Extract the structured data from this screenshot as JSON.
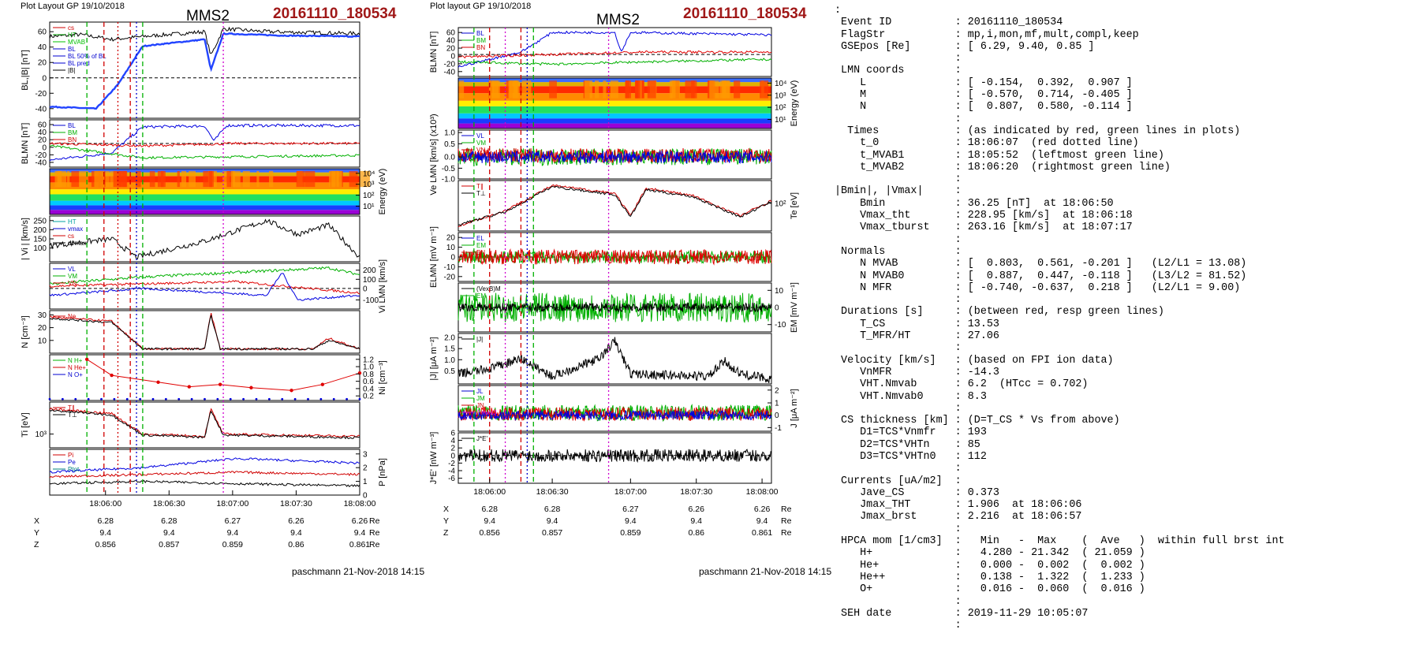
{
  "left": {
    "header": {
      "layout": "Plot Layout GP 19/10/2018",
      "spacecraft": "MMS2",
      "event": "20161110_180534"
    },
    "footer": "paschmann 21-Nov-2018 14:15",
    "time_ticks": [
      "18:06:00",
      "18:06:30",
      "18:07:00",
      "18:07:30",
      "18:08:00"
    ],
    "ephem": {
      "units": "Re",
      "rows": [
        {
          "label": "X",
          "values": [
            "6.28",
            "6.28",
            "6.27",
            "6.26",
            "6.26"
          ]
        },
        {
          "label": "Y",
          "values": [
            "9.4",
            "9.4",
            "9.4",
            "9.4",
            "9.4"
          ]
        },
        {
          "label": "Z",
          "values": [
            "0.856",
            "0.857",
            "0.859",
            "0.86",
            "0.861"
          ]
        }
      ]
    },
    "panels": [
      {
        "ylabel": "BL,|B| [nT]",
        "yticks": [
          "60",
          "40",
          "20",
          "0",
          "-20",
          "-40"
        ],
        "legend": [
          "cs",
          "HT",
          "MVAB",
          "BL",
          "BL 50% of BL",
          "BL pred",
          "|B|"
        ]
      },
      {
        "ylabel": "BLMN [nT]",
        "yticks": [
          "60",
          "40",
          "20",
          "0",
          "-20",
          "-40"
        ],
        "legend": [
          "BL",
          "BM",
          "BN"
        ]
      },
      {
        "ylabel": "Energy (eV)",
        "yticks": [
          "10⁴",
          "10³",
          "10²",
          "10¹"
        ],
        "legend": []
      },
      {
        "ylabel": "| Vi | [km/s]",
        "yticks": [
          "250",
          "200",
          "150",
          "100"
        ],
        "legend": [
          "HT",
          "vmax",
          "cs",
          "dvmax"
        ]
      },
      {
        "ylabel": "Vi LMN [km/s]",
        "yticks": [
          "200",
          "100",
          "0",
          "-100"
        ],
        "legend": [
          "VL",
          "VM",
          "VN"
        ]
      },
      {
        "ylabel": "N [cm⁻³]",
        "yticks": [
          "30",
          "20",
          "10"
        ],
        "legend": [
          "Ne"
        ]
      },
      {
        "ylabel": "Ni [cm⁻³]",
        "yticks": [
          "1.2",
          "1.0",
          "0.8",
          "0.6",
          "0.4",
          "0.2"
        ],
        "legend": [
          "N H+",
          "N He+",
          "N O+"
        ]
      },
      {
        "ylabel": "Ti [eV]",
        "yticks": [
          "10³"
        ],
        "legend": [
          "T∥",
          "T⊥"
        ]
      },
      {
        "ylabel": "P [nPa]",
        "yticks": [
          "3",
          "2",
          "1",
          "0"
        ],
        "legend": [
          "Pi",
          "Pe",
          "Ptot"
        ]
      }
    ]
  },
  "middle": {
    "header": {
      "layout": "Plot layout GP 19/10/2018",
      "spacecraft": "MMS2",
      "event": "20161110_180534"
    },
    "footer": "paschmann 21-Nov-2018 14:15",
    "time_ticks": [
      "18:06:00",
      "18:06:30",
      "18:07:00",
      "18:07:30",
      "18:08:00"
    ],
    "ephem": {
      "units": "Re",
      "rows": [
        {
          "label": "X",
          "values": [
            "6.28",
            "6.28",
            "6.27",
            "6.26",
            "6.26"
          ]
        },
        {
          "label": "Y",
          "values": [
            "9.4",
            "9.4",
            "9.4",
            "9.4",
            "9.4"
          ]
        },
        {
          "label": "Z",
          "values": [
            "0.856",
            "0.857",
            "0.859",
            "0.86",
            "0.861"
          ]
        }
      ]
    },
    "panels": [
      {
        "ylabel": "BLMN [nT]",
        "yticks": [
          "60",
          "40",
          "20",
          "0",
          "-20",
          "-40"
        ],
        "legend": [
          "BL",
          "BM",
          "BN"
        ]
      },
      {
        "ylabel": "Energy (eV)",
        "yticks": [
          "10⁴",
          "10³",
          "10²",
          "10¹"
        ],
        "legend": []
      },
      {
        "ylabel": "Ve LMN [km/s] (x10³)",
        "yticks": [
          "1.0",
          "0.5",
          "0.0",
          "-0.5",
          "-1.0"
        ],
        "legend": [
          "VL",
          "VM",
          "VN"
        ]
      },
      {
        "ylabel": "Te [eV]",
        "yticks": [
          "10²"
        ],
        "legend": [
          "T∥",
          "T⊥"
        ]
      },
      {
        "ylabel": "ELMN [mV m⁻¹]",
        "yticks": [
          "20",
          "10",
          "0",
          "-10",
          "-20"
        ],
        "legend": [
          "EL",
          "EM",
          "EN"
        ]
      },
      {
        "ylabel": "EM [mV m⁻¹]",
        "yticks": [
          "10",
          "0",
          "-10"
        ],
        "legend": [
          "(VexB)M",
          "EM"
        ]
      },
      {
        "ylabel": "|J| [μA m⁻²]",
        "yticks": [
          "2.0",
          "1.5",
          "1.0",
          "0.5"
        ],
        "legend": [
          "|J|"
        ]
      },
      {
        "ylabel": "J [μA m⁻²]",
        "yticks": [
          "2",
          "1",
          "0",
          "-1"
        ],
        "legend": [
          "JL",
          "JM",
          "JN",
          "J maxJ"
        ]
      },
      {
        "ylabel": "J*E' [nW m⁻³]",
        "yticks": [
          "6",
          "4",
          "2",
          "0",
          "-2",
          "-4",
          "-6"
        ],
        "legend": [
          "J*E'"
        ]
      }
    ]
  },
  "info": {
    "lines": [
      ":",
      " Event ID          : 20161110_180534",
      " FlagStr           : mp,i,mon,mf,mult,compl,keep",
      " GSEpos [Re]       : [ 6.29, 9.40, 0.85 ]",
      "                   :",
      " LMN coords        :",
      "    L              : [ -0.154,  0.392,  0.907 ]",
      "    M              : [ -0.570,  0.714, -0.405 ]",
      "    N              : [  0.807,  0.580, -0.114 ]",
      "                   :",
      "  Times            : (as indicated by red, green lines in plots)",
      "    t_0            : 18:06:07  (red dotted line)",
      "    t_MVAB1        : 18:05:52  (leftmost green line)",
      "    t_MVAB2        : 18:06:20  (rightmost green line)",
      "                   :",
      "|Bmin|, |Vmax|     :",
      "    Bmin           : 36.25 [nT]  at 18:06:50",
      "    Vmax_tht       : 228.95 [km/s]  at 18:06:18",
      "    Vmax_tburst    : 263.16 [km/s]  at 18:07:17",
      "                   :",
      " Normals           :",
      "    N MVAB         : [  0.803,  0.561, -0.201 ]   (L2/L1 = 13.08)",
      "    N MVAB0        : [  0.887,  0.447, -0.118 ]   (L3/L2 = 81.52)",
      "    N MFR          : [ -0.740, -0.637,  0.218 ]   (L2/L1 = 9.00)",
      "                   :",
      " Durations [s]     : (between red, resp green lines)",
      "    T_CS           : 13.53",
      "    T_MFR/HT       : 27.06",
      "                   :",
      " Velocity [km/s]   : (based on FPI ion data)",
      "    VnMFR          : -14.3",
      "    VHT.Nmvab      : 6.2  (HTcc = 0.702)",
      "    VHT.Nmvab0     : 8.3",
      "                   :",
      " CS thickness [km] : (D=T_CS * Vs from above)",
      "    D1=TCS*Vnmfr   : 193",
      "    D2=TCS*VHTn    : 85",
      "    D3=TCS*VHTn0   : 112",
      "                   :",
      " Currents [uA/m2]  :",
      "    Jave_CS        : 0.373",
      "    Jmax_THT       : 1.906  at 18:06:06",
      "    Jmax_brst      : 2.216  at 18:06:57",
      "                   :",
      " HPCA mom [1/cm3]  :   Min   -  Max    (  Ave   )  within full brst int",
      "    H+             :   4.280 - 21.342  ( 21.059 )",
      "    He+            :   0.000 -  0.002  (  0.002 )",
      "    He++           :   0.138 -  1.322  (  1.233 )",
      "    O+             :   0.016 -  0.060  (  0.016 )",
      "                   :",
      " SEH date          : 2019-11-29 10:05:07",
      "                   :"
    ]
  },
  "chart_data": [
    {
      "type": "line",
      "title": "MMS2",
      "subtitle": "20161110_180534",
      "x": [
        "18:05:40",
        "18:05:52",
        "18:06:00",
        "18:06:07",
        "18:06:20",
        "18:06:30",
        "18:06:50",
        "18:07:00",
        "18:07:30",
        "18:08:00",
        "18:08:10"
      ],
      "series": [
        {
          "name": "BL",
          "values": [
            -40,
            -40,
            -10,
            30,
            45,
            47,
            10,
            50,
            45,
            45,
            46
          ]
        },
        {
          "name": "|B|",
          "values": [
            42,
            41,
            38,
            40,
            48,
            50,
            38,
            55,
            47,
            46,
            47
          ]
        }
      ],
      "ylabel": "BL,|B| [nT]",
      "ylim": [
        -50,
        65
      ]
    },
    {
      "type": "line",
      "title": "MMS2",
      "subtitle": "20161110_180534",
      "x": [
        "18:06:00",
        "18:06:30",
        "18:06:42",
        "18:06:57",
        "18:07:00",
        "18:07:30",
        "18:08:00"
      ],
      "series": [
        {
          "name": "|J|",
          "values": [
            0.6,
            0.3,
            0.3,
            2.216,
            0.5,
            0.7,
            0.2
          ]
        }
      ],
      "ylabel": "|J| [μA m⁻²]",
      "ylim": [
        0,
        2.2
      ]
    }
  ]
}
